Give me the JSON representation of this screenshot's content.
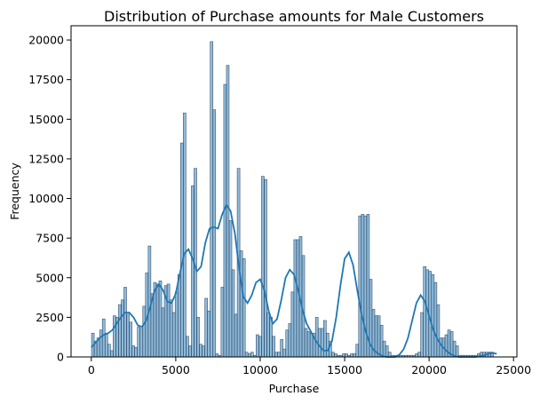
{
  "chart_data": {
    "type": "bar",
    "title": "Distribution of Purchase amounts for Male Customers",
    "xlabel": "Purchase",
    "ylabel": "Frequency",
    "xlim": [
      -1200,
      25200
    ],
    "ylim": [
      0,
      20900
    ],
    "xticks": [
      0,
      5000,
      10000,
      15000,
      20000,
      25000
    ],
    "xtick_labels": [
      "0",
      "5000",
      "10000",
      "15000",
      "20000",
      "25000"
    ],
    "yticks": [
      0,
      2500,
      5000,
      7500,
      10000,
      12500,
      15000,
      17500,
      20000
    ],
    "ytick_labels": [
      "0",
      "2500",
      "5000",
      "7500",
      "10000",
      "12500",
      "15000",
      "17500",
      "20000"
    ],
    "bin_start": 12,
    "bin_width": 159.75,
    "bin_counts": [
      1500,
      1000,
      1200,
      1700,
      2400,
      1500,
      800,
      400,
      2600,
      2500,
      3300,
      3600,
      4400,
      2700,
      2200,
      700,
      600,
      1900,
      1800,
      3200,
      5300,
      7000,
      4000,
      4700,
      4600,
      4800,
      3100,
      4500,
      4600,
      3600,
      2800,
      4100,
      5200,
      13500,
      15400,
      1300,
      700,
      10800,
      11900,
      2500,
      800,
      700,
      3700,
      2900,
      19900,
      15600,
      200,
      100,
      4400,
      17200,
      18400,
      8600,
      5500,
      2700,
      11900,
      6700,
      6200,
      300,
      200,
      300,
      100,
      1400,
      1300,
      11400,
      11200,
      2800,
      2500,
      1300,
      300,
      300,
      1100,
      500,
      1700,
      2100,
      4100,
      7400,
      7400,
      7600,
      6400,
      1800,
      1600,
      1500,
      1500,
      2500,
      1800,
      1800,
      2300,
      1500,
      1000,
      300,
      200,
      100,
      100,
      200,
      200,
      100,
      200,
      200,
      800,
      8900,
      9000,
      8900,
      9000,
      4900,
      3000,
      2600,
      2600,
      2000,
      1000,
      700,
      300,
      100,
      100,
      100,
      100,
      100,
      100,
      100,
      100,
      100,
      200,
      300,
      2800,
      5700,
      5500,
      5400,
      5200,
      4700,
      3300,
      1200,
      1200,
      1400,
      1700,
      1600,
      1000,
      700,
      100,
      100,
      100,
      100,
      100,
      100,
      100,
      200,
      300,
      300,
      300,
      300,
      300
    ],
    "kde": {
      "x": [
        0,
        250,
        500,
        750,
        1000,
        1250,
        1500,
        1750,
        2000,
        2250,
        2500,
        2750,
        3000,
        3250,
        3500,
        3750,
        4000,
        4250,
        4500,
        4750,
        5000,
        5250,
        5500,
        5750,
        6000,
        6250,
        6500,
        6750,
        7000,
        7250,
        7500,
        7750,
        8000,
        8250,
        8500,
        8750,
        9000,
        9250,
        9500,
        9750,
        10000,
        10250,
        10500,
        10750,
        11000,
        11250,
        11500,
        11750,
        12000,
        12250,
        12500,
        12750,
        13000,
        13250,
        13500,
        13750,
        14000,
        14250,
        14500,
        14750,
        15000,
        15250,
        15500,
        15750,
        16000,
        16250,
        16500,
        16750,
        17000,
        17250,
        17500,
        17750,
        18000,
        18250,
        18500,
        18750,
        19000,
        19250,
        19500,
        19750,
        20000,
        20250,
        20500,
        20750,
        21000,
        21250,
        21500,
        21750,
        22000,
        22250,
        22500,
        22750,
        23000,
        23250,
        23500,
        23750,
        24000
      ],
      "y": [
        600,
        900,
        1200,
        1400,
        1500,
        1700,
        2100,
        2500,
        2800,
        2800,
        2500,
        2000,
        1900,
        2300,
        3200,
        4200,
        4600,
        4200,
        3500,
        3400,
        4000,
        5300,
        6500,
        6800,
        6200,
        5400,
        5700,
        7200,
        8100,
        8200,
        8100,
        9000,
        9600,
        9200,
        7800,
        5600,
        3800,
        3400,
        3900,
        4700,
        4900,
        4200,
        2900,
        2100,
        2400,
        3600,
        5000,
        5500,
        5200,
        4200,
        3000,
        2100,
        1600,
        1100,
        700,
        400,
        400,
        1000,
        2500,
        4500,
        6200,
        6600,
        5800,
        4200,
        2700,
        1600,
        800,
        400,
        200,
        50,
        0,
        0,
        0,
        150,
        500,
        1200,
        2300,
        3400,
        3900,
        3500,
        2600,
        1700,
        1100,
        700,
        400,
        200,
        60,
        0,
        0,
        0,
        0,
        0,
        50,
        100,
        200,
        250,
        200
      ]
    }
  }
}
